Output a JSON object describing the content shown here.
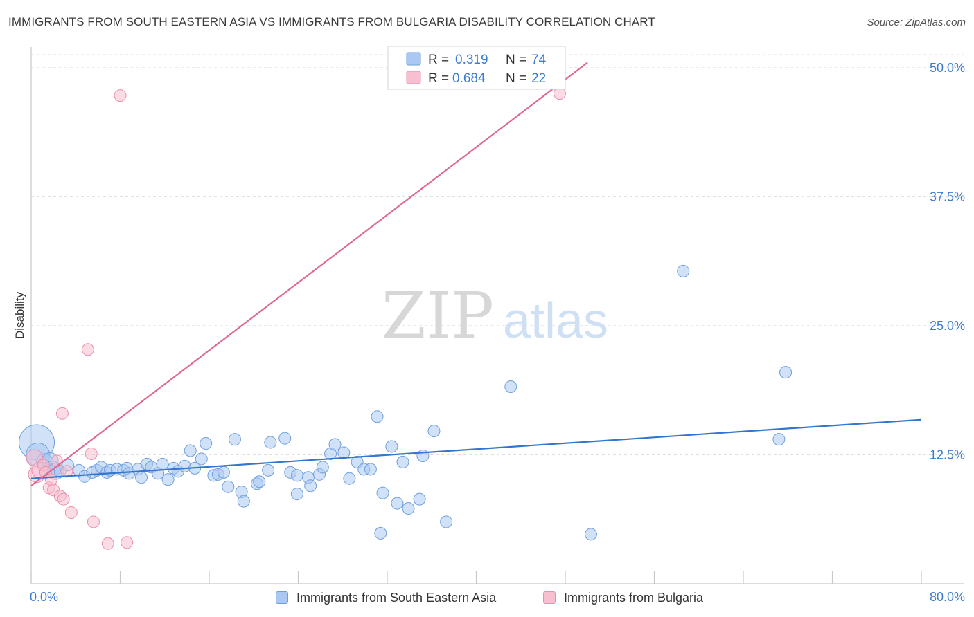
{
  "header": {
    "title": "IMMIGRANTS FROM SOUTH EASTERN ASIA VS IMMIGRANTS FROM BULGARIA DISABILITY CORRELATION CHART",
    "source": "Source: ZipAtlas.com"
  },
  "watermark": {
    "zip": "ZIP",
    "atlas": "atlas"
  },
  "colors": {
    "blue_fill": "#aac8f2",
    "blue_stroke": "#6f9fdc",
    "blue_line": "#3377cc",
    "pink_fill": "#f8bfd0",
    "pink_stroke": "#ec8fab",
    "pink_line": "#e06890",
    "axis_text_blue": "#3d7cd0",
    "grid": "#dddddd"
  },
  "stats_box": {
    "rows": [
      {
        "r_label": "R = ",
        "r_value": "0.319",
        "n_label": "N = ",
        "n_value": "74"
      },
      {
        "r_label": "R = ",
        "r_value": "0.684",
        "n_label": "N = ",
        "n_value": "22"
      }
    ]
  },
  "legend": {
    "position": "bottom-center",
    "items": [
      {
        "label": "Immigrants from South Eastern Asia"
      },
      {
        "label": "Immigrants from Bulgaria"
      }
    ]
  },
  "chart_data": {
    "type": "scatter",
    "title": "IMMIGRANTS FROM SOUTH EASTERN ASIA VS IMMIGRANTS FROM BULGARIA DISABILITY CORRELATION CHART",
    "xlabel": "",
    "ylabel": "Disability",
    "xlim": [
      0,
      80
    ],
    "ylim": [
      0,
      52
    ],
    "x_tick_labels": [
      "0.0%",
      "80.0%"
    ],
    "y_ticks": [
      12.5,
      25.0,
      37.5,
      50.0
    ],
    "y_tick_labels": [
      "12.5%",
      "25.0%",
      "37.5%",
      "50.0%"
    ],
    "grid": true,
    "series": [
      {
        "name": "Immigrants from South Eastern Asia",
        "color": "#aac8f2",
        "trend": {
          "x": [
            0,
            80
          ],
          "y": [
            10.2,
            15.9
          ]
        },
        "points": [
          {
            "x": 0.5,
            "y": 13.7,
            "s": 3
          },
          {
            "x": 0.6,
            "y": 12.5,
            "s": 2
          },
          {
            "x": 1.2,
            "y": 11.8,
            "s": 1.4
          },
          {
            "x": 1.7,
            "y": 11.9,
            "s": 1.4
          },
          {
            "x": 1.9,
            "y": 11.1,
            "s": 1.4
          },
          {
            "x": 2.2,
            "y": 10.9,
            "s": 1.4
          },
          {
            "x": 2.6,
            "y": 10.9,
            "s": 1
          },
          {
            "x": 3.3,
            "y": 11.5,
            "s": 1
          },
          {
            "x": 4.3,
            "y": 11.0,
            "s": 1
          },
          {
            "x": 4.8,
            "y": 10.4,
            "s": 1
          },
          {
            "x": 5.5,
            "y": 10.8,
            "s": 1
          },
          {
            "x": 5.9,
            "y": 11.0,
            "s": 1
          },
          {
            "x": 6.3,
            "y": 11.3,
            "s": 1
          },
          {
            "x": 6.8,
            "y": 10.8,
            "s": 1
          },
          {
            "x": 7.1,
            "y": 11.0,
            "s": 1
          },
          {
            "x": 7.7,
            "y": 11.1,
            "s": 1
          },
          {
            "x": 8.3,
            "y": 11.0,
            "s": 1
          },
          {
            "x": 8.6,
            "y": 11.2,
            "s": 1
          },
          {
            "x": 8.8,
            "y": 10.7,
            "s": 1
          },
          {
            "x": 9.6,
            "y": 11.1,
            "s": 1
          },
          {
            "x": 9.9,
            "y": 10.3,
            "s": 1
          },
          {
            "x": 10.4,
            "y": 11.6,
            "s": 1
          },
          {
            "x": 10.8,
            "y": 11.3,
            "s": 1
          },
          {
            "x": 11.4,
            "y": 10.7,
            "s": 1
          },
          {
            "x": 11.8,
            "y": 11.6,
            "s": 1
          },
          {
            "x": 12.3,
            "y": 10.1,
            "s": 1
          },
          {
            "x": 12.8,
            "y": 11.2,
            "s": 1
          },
          {
            "x": 13.2,
            "y": 10.9,
            "s": 1
          },
          {
            "x": 13.8,
            "y": 11.4,
            "s": 1
          },
          {
            "x": 14.3,
            "y": 12.9,
            "s": 1
          },
          {
            "x": 14.7,
            "y": 11.2,
            "s": 1
          },
          {
            "x": 15.3,
            "y": 12.1,
            "s": 1
          },
          {
            "x": 15.7,
            "y": 13.6,
            "s": 1
          },
          {
            "x": 16.4,
            "y": 10.5,
            "s": 1
          },
          {
            "x": 16.8,
            "y": 10.6,
            "s": 1
          },
          {
            "x": 17.3,
            "y": 10.8,
            "s": 1
          },
          {
            "x": 17.7,
            "y": 9.4,
            "s": 1
          },
          {
            "x": 18.3,
            "y": 14.0,
            "s": 1
          },
          {
            "x": 18.9,
            "y": 8.9,
            "s": 1
          },
          {
            "x": 19.1,
            "y": 8.0,
            "s": 1
          },
          {
            "x": 20.3,
            "y": 9.7,
            "s": 1
          },
          {
            "x": 20.5,
            "y": 9.9,
            "s": 1
          },
          {
            "x": 21.3,
            "y": 11.0,
            "s": 1
          },
          {
            "x": 21.5,
            "y": 13.7,
            "s": 1
          },
          {
            "x": 22.8,
            "y": 14.1,
            "s": 1
          },
          {
            "x": 23.3,
            "y": 10.8,
            "s": 1
          },
          {
            "x": 23.9,
            "y": 10.5,
            "s": 1
          },
          {
            "x": 23.9,
            "y": 8.7,
            "s": 1
          },
          {
            "x": 24.9,
            "y": 10.3,
            "s": 1
          },
          {
            "x": 25.1,
            "y": 9.5,
            "s": 1
          },
          {
            "x": 25.9,
            "y": 10.6,
            "s": 1
          },
          {
            "x": 26.2,
            "y": 11.3,
            "s": 1
          },
          {
            "x": 26.9,
            "y": 12.6,
            "s": 1
          },
          {
            "x": 27.3,
            "y": 13.5,
            "s": 1
          },
          {
            "x": 28.1,
            "y": 12.7,
            "s": 1
          },
          {
            "x": 28.6,
            "y": 10.2,
            "s": 1
          },
          {
            "x": 29.3,
            "y": 11.8,
            "s": 1
          },
          {
            "x": 29.9,
            "y": 11.1,
            "s": 1
          },
          {
            "x": 30.5,
            "y": 11.1,
            "s": 1
          },
          {
            "x": 31.1,
            "y": 16.2,
            "s": 1
          },
          {
            "x": 31.4,
            "y": 4.9,
            "s": 1
          },
          {
            "x": 31.6,
            "y": 8.8,
            "s": 1
          },
          {
            "x": 32.4,
            "y": 13.3,
            "s": 1
          },
          {
            "x": 32.9,
            "y": 7.8,
            "s": 1
          },
          {
            "x": 33.4,
            "y": 11.8,
            "s": 1
          },
          {
            "x": 33.9,
            "y": 7.3,
            "s": 1
          },
          {
            "x": 34.9,
            "y": 8.2,
            "s": 1
          },
          {
            "x": 35.2,
            "y": 12.4,
            "s": 1
          },
          {
            "x": 36.2,
            "y": 14.8,
            "s": 1
          },
          {
            "x": 37.3,
            "y": 6.0,
            "s": 1
          },
          {
            "x": 43.1,
            "y": 19.1,
            "s": 1
          },
          {
            "x": 50.3,
            "y": 4.8,
            "s": 1
          },
          {
            "x": 58.6,
            "y": 30.3,
            "s": 1
          },
          {
            "x": 67.2,
            "y": 14.0,
            "s": 1
          },
          {
            "x": 67.8,
            "y": 20.5,
            "s": 1
          }
        ]
      },
      {
        "name": "Immigrants from Bulgaria",
        "color": "#f8bfd0",
        "trend": {
          "x": [
            0,
            50
          ],
          "y": [
            9.5,
            50.5
          ]
        },
        "points": [
          {
            "x": 0.3,
            "y": 12.2,
            "s": 1.4
          },
          {
            "x": 0.5,
            "y": 10.6,
            "s": 1.4
          },
          {
            "x": 0.8,
            "y": 11.0,
            "s": 1.4
          },
          {
            "x": 1.1,
            "y": 11.5,
            "s": 1
          },
          {
            "x": 1.3,
            "y": 10.8,
            "s": 1
          },
          {
            "x": 1.6,
            "y": 9.3,
            "s": 1
          },
          {
            "x": 1.8,
            "y": 10.1,
            "s": 1
          },
          {
            "x": 2.0,
            "y": 9.1,
            "s": 1
          },
          {
            "x": 2.3,
            "y": 11.9,
            "s": 1
          },
          {
            "x": 2.6,
            "y": 8.5,
            "s": 1
          },
          {
            "x": 2.9,
            "y": 8.2,
            "s": 1
          },
          {
            "x": 2.8,
            "y": 16.5,
            "s": 1
          },
          {
            "x": 3.2,
            "y": 10.9,
            "s": 1
          },
          {
            "x": 3.6,
            "y": 6.9,
            "s": 1
          },
          {
            "x": 5.1,
            "y": 22.7,
            "s": 1
          },
          {
            "x": 5.4,
            "y": 12.6,
            "s": 1
          },
          {
            "x": 5.6,
            "y": 6.0,
            "s": 1
          },
          {
            "x": 6.9,
            "y": 3.9,
            "s": 1
          },
          {
            "x": 8.0,
            "y": 47.3,
            "s": 1
          },
          {
            "x": 8.6,
            "y": 4.0,
            "s": 1
          },
          {
            "x": 47.5,
            "y": 47.5,
            "s": 1
          }
        ]
      }
    ]
  }
}
